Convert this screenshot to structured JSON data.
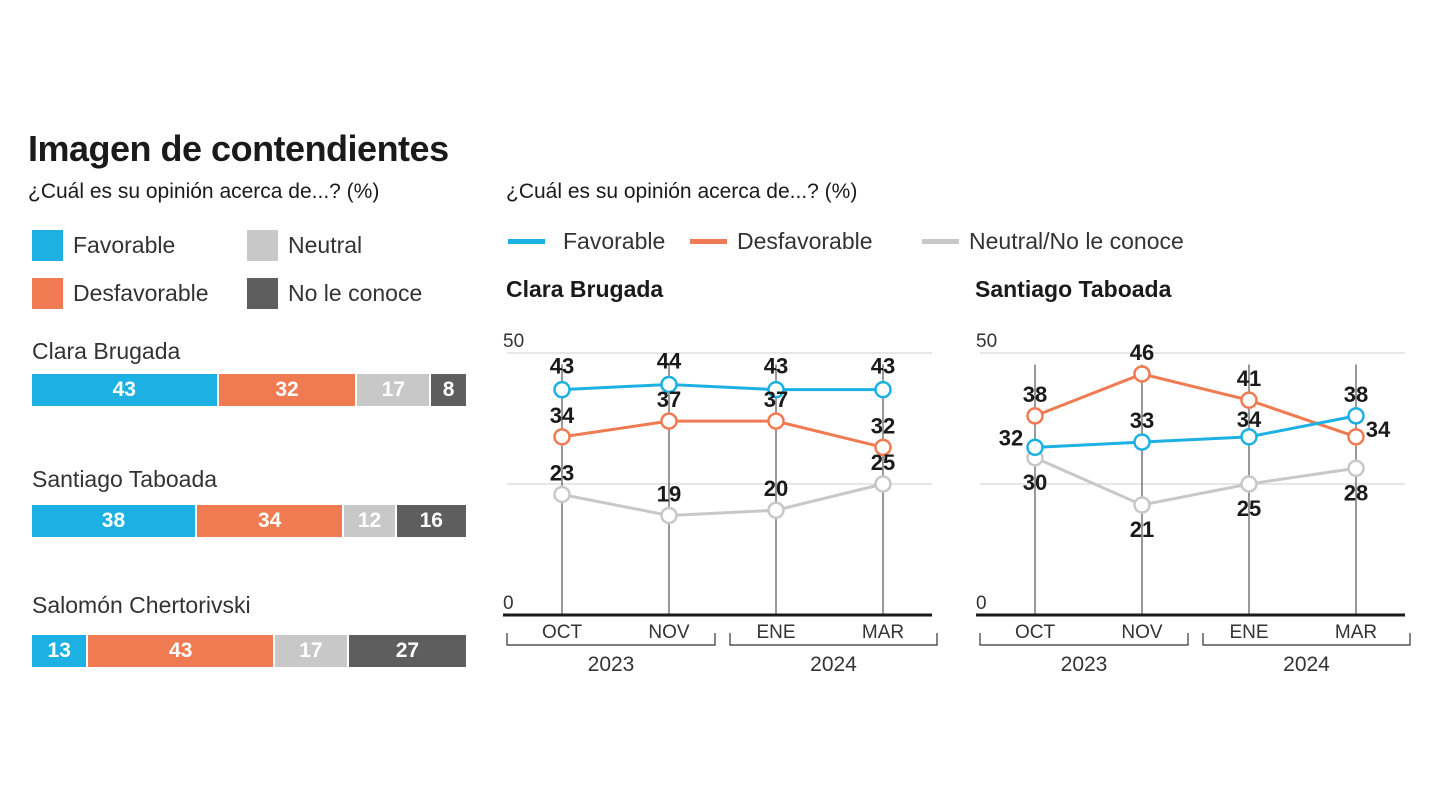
{
  "title": "Imagen de contendientes",
  "left_subtitle": "¿Cuál es su opinión acerca de...? (%)",
  "right_subtitle": "¿Cuál es su opinión acerca de...? (%)",
  "colors": {
    "favorable": "#1cb0e3",
    "desfavorable": "#f07a52",
    "neutral": "#c8c8c8",
    "no_conoce": "#5e5e5e"
  },
  "bar_legend": [
    {
      "key": "favorable",
      "label": "Favorable"
    },
    {
      "key": "neutral",
      "label": "Neutral"
    },
    {
      "key": "desfavorable",
      "label": "Desfavorable"
    },
    {
      "key": "no_conoce",
      "label": "No le conoce"
    }
  ],
  "line_legend": [
    {
      "key": "favorable",
      "label": "Favorable"
    },
    {
      "key": "desfavorable",
      "label": "Desfavorable"
    },
    {
      "key": "neutral",
      "label": "Neutral/No le conoce"
    }
  ],
  "chart_data": [
    {
      "type": "bar",
      "stacked": true,
      "orientation": "horizontal",
      "categories": [
        "Clara Brugada",
        "Santiago Taboada",
        "Salomón Chertorivski"
      ],
      "series": [
        {
          "name": "Favorable",
          "key": "favorable",
          "values": [
            43,
            38,
            13
          ]
        },
        {
          "name": "Desfavorable",
          "key": "desfavorable",
          "values": [
            32,
            34,
            43
          ]
        },
        {
          "name": "Neutral",
          "key": "neutral",
          "values": [
            17,
            12,
            17
          ]
        },
        {
          "name": "No le conoce",
          "key": "no_conoce",
          "values": [
            8,
            16,
            27
          ]
        }
      ],
      "legend": "top"
    },
    {
      "type": "line",
      "title": "Clara Brugada",
      "x": [
        "OCT",
        "NOV",
        "ENE",
        "MAR"
      ],
      "year_groups": [
        {
          "label": "2023",
          "months": [
            "OCT",
            "NOV"
          ]
        },
        {
          "label": "2024",
          "months": [
            "ENE",
            "MAR"
          ]
        }
      ],
      "ylim": [
        0,
        50
      ],
      "y_ticks": [
        0,
        50
      ],
      "grid": true,
      "series": [
        {
          "name": "Favorable",
          "key": "favorable",
          "values": [
            43,
            44,
            43,
            43
          ]
        },
        {
          "name": "Desfavorable",
          "key": "desfavorable",
          "values": [
            34,
            37,
            37,
            32
          ]
        },
        {
          "name": "Neutral/No le conoce",
          "key": "neutral",
          "values": [
            23,
            19,
            20,
            25
          ]
        }
      ]
    },
    {
      "type": "line",
      "title": "Santiago Taboada",
      "x": [
        "OCT",
        "NOV",
        "ENE",
        "MAR"
      ],
      "year_groups": [
        {
          "label": "2023",
          "months": [
            "OCT",
            "NOV"
          ]
        },
        {
          "label": "2024",
          "months": [
            "ENE",
            "MAR"
          ]
        }
      ],
      "ylim": [
        0,
        50
      ],
      "y_ticks": [
        0,
        50
      ],
      "grid": true,
      "series": [
        {
          "name": "Favorable",
          "key": "favorable",
          "values": [
            32,
            33,
            34,
            38
          ]
        },
        {
          "name": "Desfavorable",
          "key": "desfavorable",
          "values": [
            38,
            46,
            41,
            34
          ]
        },
        {
          "name": "Neutral/No le conoce",
          "key": "neutral",
          "values": [
            30,
            21,
            25,
            28
          ]
        }
      ]
    }
  ]
}
